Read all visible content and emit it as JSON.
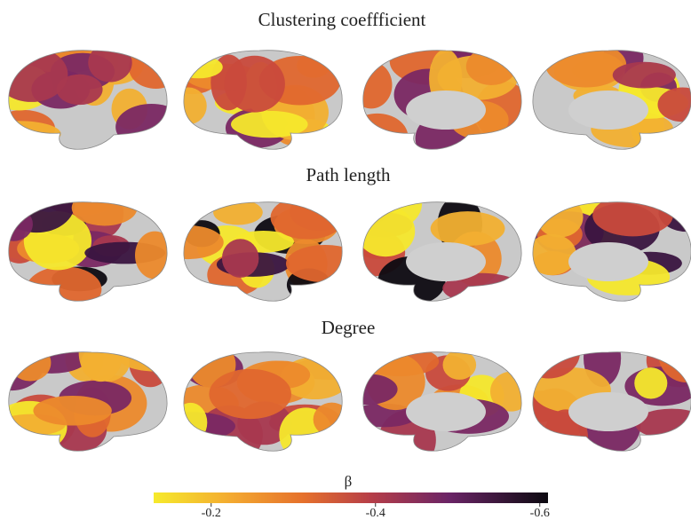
{
  "panels": [
    {
      "title": "Clustering coeffficient"
    },
    {
      "title": "Path length"
    },
    {
      "title": "Degree"
    }
  ],
  "colorbar": {
    "label": "β",
    "lim": [
      -0.13,
      -0.61
    ],
    "ticks": [
      -0.2,
      -0.4,
      -0.6
    ]
  }
}
